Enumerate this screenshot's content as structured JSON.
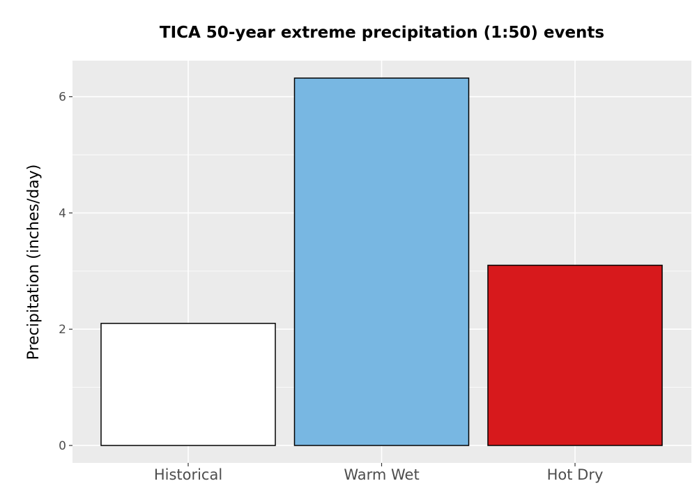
{
  "chart_data": {
    "type": "bar",
    "title": "TICA 50-year extreme precipitation (1:50) events",
    "ylabel": "Precipitation (inches/day)",
    "xlabel": "",
    "categories": [
      "Historical",
      "Warm Wet",
      "Hot Dry"
    ],
    "values": [
      2.1,
      6.32,
      3.1
    ],
    "colors": [
      "#ffffff",
      "#78b7e2",
      "#d7191c"
    ],
    "ylim": [
      -0.3,
      6.62
    ],
    "yticks": [
      0,
      2,
      4,
      6
    ],
    "ytick_labels": [
      "0",
      "2",
      "4",
      "6"
    ],
    "grid": true,
    "panel_background": "#ebebeb",
    "bar_outline": "#000000"
  }
}
